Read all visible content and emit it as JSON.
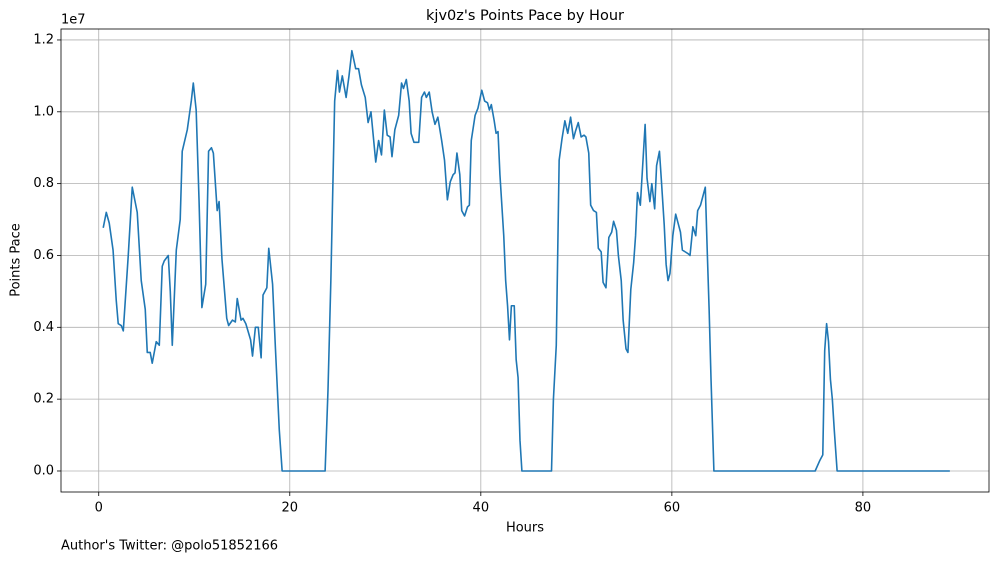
{
  "chart_data": {
    "type": "line",
    "title": "kjv0z's Points Pace by Hour",
    "xlabel": "Hours",
    "ylabel": "Points Pace",
    "y_offset_label": "1e7",
    "footer": "Author's Twitter: @polo51852166",
    "xlim": [
      -3.95,
      93.2
    ],
    "ylim": [
      -0.0585,
      1.2305
    ],
    "xticks": [
      0,
      20,
      40,
      60,
      80
    ],
    "yticks": [
      {
        "value": 0,
        "label": "0.0"
      },
      0.2,
      0.4,
      0.6,
      0.8,
      {
        "value": 1,
        "label": "1.0"
      },
      1.2
    ],
    "grid": true,
    "x": [
      0.47,
      0.79,
      1.1,
      1.5,
      1.83,
      2.04,
      2.36,
      2.57,
      3.09,
      3.51,
      4.03,
      4.45,
      4.87,
      5.08,
      5.39,
      5.6,
      6.02,
      6.34,
      6.65,
      6.86,
      7.28,
      7.49,
      7.7,
      8.12,
      8.53,
      8.74,
      9.27,
      9.69,
      9.9,
      10.2,
      10.5,
      10.8,
      11.2,
      11.5,
      11.8,
      12.0,
      12.4,
      12.6,
      12.9,
      13.4,
      13.6,
      14.0,
      14.3,
      14.5,
      14.9,
      15.1,
      15.4,
      15.9,
      16.1,
      16.4,
      16.7,
      17.0,
      17.2,
      17.6,
      17.8,
      18.2,
      18.5,
      18.9,
      19.2,
      23.7,
      24.0,
      24.3,
      24.7,
      25.0,
      25.2,
      25.5,
      25.9,
      26.2,
      26.5,
      26.9,
      27.2,
      27.5,
      27.9,
      28.2,
      28.5,
      29.0,
      29.3,
      29.6,
      29.9,
      30.2,
      30.5,
      30.7,
      31.0,
      31.4,
      31.7,
      31.9,
      32.2,
      32.5,
      32.7,
      33.0,
      33.5,
      33.8,
      34.1,
      34.3,
      34.6,
      34.9,
      35.2,
      35.5,
      35.9,
      36.2,
      36.5,
      36.8,
      37.1,
      37.3,
      37.5,
      37.8,
      38.0,
      38.3,
      38.6,
      38.8,
      39.0,
      39.4,
      39.7,
      40.1,
      40.4,
      40.7,
      40.9,
      41.1,
      41.4,
      41.6,
      41.8,
      42.0,
      42.4,
      42.6,
      42.8,
      43.0,
      43.2,
      43.5,
      43.7,
      43.9,
      44.1,
      44.3,
      47.4,
      47.6,
      47.9,
      48.2,
      48.5,
      48.8,
      49.1,
      49.4,
      49.7,
      49.9,
      50.2,
      50.5,
      50.8,
      51.0,
      51.3,
      51.5,
      51.8,
      52.1,
      52.3,
      52.6,
      52.8,
      53.1,
      53.4,
      53.7,
      53.9,
      54.2,
      54.4,
      54.7,
      54.9,
      55.2,
      55.4,
      55.7,
      56.0,
      56.2,
      56.4,
      56.7,
      56.9,
      57.2,
      57.4,
      57.7,
      57.9,
      58.2,
      58.4,
      58.7,
      58.9,
      59.2,
      59.4,
      59.6,
      59.8,
      60.1,
      60.4,
      60.6,
      60.9,
      61.1,
      61.4,
      61.7,
      61.9,
      62.2,
      62.5,
      62.7,
      63.0,
      63.2,
      63.5,
      63.7,
      63.9,
      64.1,
      64.4,
      75.0,
      75.5,
      75.8,
      76.0,
      76.2,
      76.4,
      76.6,
      76.8,
      77.0,
      77.3,
      89.1
    ],
    "series": [
      {
        "color": "#1f77b4",
        "values": [
          0.677,
          0.72,
          0.69,
          0.615,
          0.476,
          0.41,
          0.405,
          0.39,
          0.6,
          0.79,
          0.72,
          0.53,
          0.45,
          0.33,
          0.33,
          0.3,
          0.36,
          0.35,
          0.57,
          0.585,
          0.6,
          0.5,
          0.35,
          0.615,
          0.7,
          0.89,
          0.95,
          1.03,
          1.08,
          1.005,
          0.755,
          0.455,
          0.52,
          0.89,
          0.9,
          0.885,
          0.725,
          0.75,
          0.59,
          0.425,
          0.405,
          0.42,
          0.415,
          0.48,
          0.42,
          0.425,
          0.41,
          0.365,
          0.32,
          0.4,
          0.4,
          0.315,
          0.49,
          0.51,
          0.62,
          0.52,
          0.34,
          0.115,
          0,
          0,
          0.225,
          0.53,
          1.03,
          1.115,
          1.055,
          1.1,
          1.04,
          1.1,
          1.17,
          1.12,
          1.12,
          1.075,
          1.04,
          0.97,
          1.0,
          0.86,
          0.92,
          0.88,
          1.005,
          0.935,
          0.93,
          0.875,
          0.95,
          0.99,
          1.08,
          1.065,
          1.09,
          1.03,
          0.94,
          0.915,
          0.915,
          1.04,
          1.055,
          1.04,
          1.055,
          1.0,
          0.965,
          0.985,
          0.92,
          0.865,
          0.755,
          0.805,
          0.825,
          0.83,
          0.885,
          0.825,
          0.725,
          0.71,
          0.735,
          0.74,
          0.92,
          0.99,
          1.01,
          1.06,
          1.03,
          1.025,
          1.005,
          1.02,
          0.975,
          0.94,
          0.945,
          0.825,
          0.655,
          0.53,
          0.46,
          0.365,
          0.46,
          0.46,
          0.31,
          0.26,
          0.085,
          0,
          0,
          0.2,
          0.35,
          0.865,
          0.925,
          0.975,
          0.94,
          0.985,
          0.925,
          0.945,
          0.97,
          0.93,
          0.935,
          0.93,
          0.885,
          0.74,
          0.725,
          0.72,
          0.62,
          0.61,
          0.525,
          0.51,
          0.65,
          0.665,
          0.695,
          0.67,
          0.6,
          0.53,
          0.42,
          0.34,
          0.33,
          0.505,
          0.58,
          0.655,
          0.775,
          0.74,
          0.83,
          0.965,
          0.815,
          0.75,
          0.8,
          0.73,
          0.85,
          0.89,
          0.81,
          0.685,
          0.575,
          0.53,
          0.55,
          0.655,
          0.715,
          0.695,
          0.665,
          0.615,
          0.61,
          0.605,
          0.6,
          0.68,
          0.655,
          0.725,
          0.74,
          0.76,
          0.79,
          0.615,
          0.45,
          0.255,
          0,
          0,
          0.03,
          0.045,
          0.335,
          0.41,
          0.36,
          0.255,
          0.2,
          0.115,
          0,
          0
        ]
      }
    ]
  }
}
